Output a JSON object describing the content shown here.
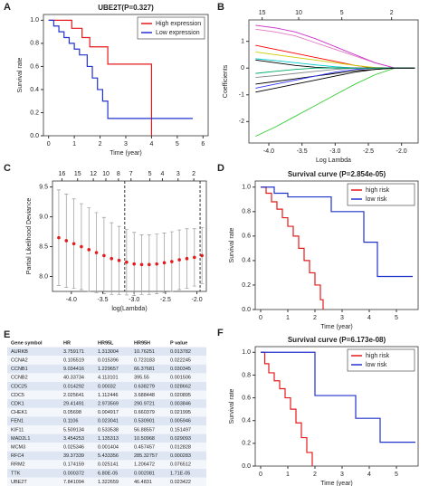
{
  "chart_data": [
    {
      "panel": "A",
      "type": "step",
      "title": "UBE2T(P=0.327)",
      "xlabel": "Time (year)",
      "ylabel": "Survival rate",
      "xlim": [
        -0.2,
        6.2
      ],
      "xticks": [
        0,
        1,
        2,
        3,
        4,
        5,
        6
      ],
      "ylim": [
        0,
        1.05
      ],
      "yticks": [
        {
          "value": 0,
          "label": "0.0"
        },
        0.2,
        0.4,
        0.6,
        0.8,
        {
          "value": 1,
          "label": "1.0"
        }
      ],
      "legend": "upper right",
      "series": [
        {
          "name": "High expression",
          "color": "#e41a1c",
          "x": [
            0,
            0.9,
            1.3,
            1.6,
            2.3,
            3.9,
            4.0
          ],
          "values": [
            1,
            0.93,
            0.85,
            0.77,
            0.62,
            0.62,
            0
          ]
        },
        {
          "name": "Low expression",
          "color": "#2233cc",
          "x": [
            0,
            0.2,
            0.4,
            0.6,
            0.8,
            1.0,
            1.2,
            1.5,
            1.7,
            1.9,
            2.1,
            2.3,
            5.6
          ],
          "values": [
            1,
            0.95,
            0.9,
            0.85,
            0.8,
            0.75,
            0.7,
            0.6,
            0.5,
            0.4,
            0.3,
            0.15,
            0.15
          ]
        }
      ]
    },
    {
      "panel": "B",
      "type": "line",
      "xlabel": "Log Lambda",
      "ylabel": "Coefficients",
      "xlim": [
        -4.3,
        -1.75
      ],
      "xticks": [
        {
          "value": -4,
          "label": "-4.0"
        },
        -3.5,
        {
          "value": -3,
          "label": "-3.0"
        },
        -2.5,
        {
          "value": -2,
          "label": "-2.0"
        }
      ],
      "ylim": [
        -2.8,
        1.8
      ],
      "yticks": [
        -2,
        -1,
        0,
        1
      ],
      "x2ticks": [
        {
          "value": -4.1,
          "label": "15"
        },
        {
          "value": -3.55,
          "label": "10"
        },
        {
          "value": -2.9,
          "label": "5"
        },
        {
          "value": -2.15,
          "label": "2"
        }
      ],
      "x": [
        -4.2,
        -3.9,
        -3.6,
        -3.3,
        -3.0,
        -2.7,
        -2.4,
        -2.1,
        -1.8
      ],
      "series": [
        {
          "color": "#e377c2",
          "values": [
            1.45,
            1.35,
            1.2,
            0.95,
            0.7,
            0.45,
            0.2,
            0,
            0
          ]
        },
        {
          "color": "#cc33cc",
          "values": [
            1.6,
            1.5,
            1.35,
            1.1,
            0.8,
            0.5,
            0.2,
            0,
            0
          ]
        },
        {
          "color": "#33cc33",
          "values": [
            -2.55,
            -2.2,
            -1.8,
            -1.4,
            -1.0,
            -0.6,
            -0.25,
            0,
            0
          ]
        },
        {
          "color": "#ff0000",
          "values": [
            0.85,
            0.7,
            0.55,
            0.4,
            0.25,
            0.1,
            0,
            0,
            0
          ]
        },
        {
          "color": "#cccc00",
          "values": [
            0.6,
            0.5,
            0.4,
            0.3,
            0.2,
            0.1,
            0.02,
            0,
            0
          ]
        },
        {
          "color": "#000000",
          "values": [
            -0.6,
            -0.5,
            -0.4,
            -0.3,
            -0.2,
            -0.1,
            -0.05,
            0,
            0
          ]
        },
        {
          "color": "#3333ff",
          "values": [
            -0.75,
            -0.6,
            -0.45,
            -0.3,
            -0.15,
            -0.05,
            0,
            0,
            0
          ]
        },
        {
          "color": "#00cccc",
          "values": [
            0.35,
            0.28,
            0.2,
            0.12,
            0.05,
            0,
            0,
            0,
            0
          ]
        },
        {
          "color": "#888888",
          "values": [
            -0.35,
            -0.28,
            -0.2,
            -0.12,
            -0.05,
            0,
            0,
            0,
            0
          ]
        },
        {
          "color": "#000000",
          "values": [
            0.3,
            0.2,
            0.1,
            0.03,
            0,
            0,
            0,
            0,
            0
          ]
        },
        {
          "color": "#00aa66",
          "values": [
            -0.2,
            -0.12,
            -0.05,
            0,
            0,
            0,
            0,
            0,
            0
          ]
        },
        {
          "color": "#000000",
          "values": [
            -0.9,
            -0.75,
            -0.6,
            -0.45,
            -0.3,
            -0.15,
            -0.05,
            0,
            0
          ]
        }
      ]
    },
    {
      "panel": "C",
      "type": "errorbar",
      "xlabel": "log(Lambda)",
      "ylabel": "Partial Likelihood Deviance",
      "xlim": [
        -4.3,
        -1.85
      ],
      "xticks": [
        {
          "value": -4,
          "label": "-4.0"
        },
        -3.5,
        {
          "value": -3,
          "label": "-3.0"
        },
        -2.5,
        {
          "value": -2,
          "label": "-2.0"
        }
      ],
      "ylim": [
        7.75,
        9.6
      ],
      "yticks": [
        {
          "value": 8,
          "label": "8.0"
        },
        8.5,
        {
          "value": 9,
          "label": "9.0"
        },
        9.5
      ],
      "x2ticks": [
        {
          "value": -4.15,
          "label": "16"
        },
        {
          "value": -3.9,
          "label": "15"
        },
        {
          "value": -3.65,
          "label": "12"
        },
        {
          "value": -3.45,
          "label": "10"
        },
        {
          "value": -3.25,
          "label": "8"
        },
        {
          "value": -3.05,
          "label": "7"
        },
        {
          "value": -2.75,
          "label": "5"
        },
        {
          "value": -2.55,
          "label": "4"
        },
        {
          "value": -2.3,
          "label": "3"
        },
        {
          "value": -2.05,
          "label": "2"
        }
      ],
      "color": "#e41a1c",
      "x": [
        -4.2,
        -4.08,
        -3.96,
        -3.84,
        -3.72,
        -3.6,
        -3.48,
        -3.36,
        -3.24,
        -3.12,
        -3.0,
        -2.88,
        -2.76,
        -2.64,
        -2.52,
        -2.4,
        -2.28,
        -2.16,
        -2.04,
        -1.92
      ],
      "values": [
        8.65,
        8.6,
        8.55,
        8.5,
        8.45,
        8.4,
        8.35,
        8.3,
        8.27,
        8.24,
        8.21,
        8.2,
        8.2,
        8.21,
        8.23,
        8.25,
        8.28,
        8.3,
        8.32,
        8.35
      ],
      "errors": [
        0.8,
        0.78,
        0.75,
        0.72,
        0.7,
        0.67,
        0.64,
        0.6,
        0.57,
        0.55,
        0.53,
        0.5,
        0.5,
        0.5,
        0.5,
        0.5,
        0.5,
        0.5,
        0.48,
        0.47
      ],
      "vlines": [
        -3.15,
        -1.95
      ]
    },
    {
      "panel": "D",
      "type": "step",
      "title": "Survival curve (P=2.854e-05)",
      "xlabel": "Time (year)",
      "ylabel": "Survival rate",
      "xlim": [
        -0.2,
        5.8
      ],
      "xticks": [
        0,
        1,
        2,
        3,
        4,
        5
      ],
      "ylim": [
        0,
        1.05
      ],
      "yticks": [
        {
          "value": 0,
          "label": "0.0"
        },
        0.2,
        0.4,
        0.6,
        0.8,
        {
          "value": 1,
          "label": "1.0"
        }
      ],
      "legend": "upper right",
      "series": [
        {
          "name": "high risk",
          "color": "#e41a1c",
          "x": [
            0,
            0.2,
            0.4,
            0.6,
            0.8,
            1.0,
            1.2,
            1.4,
            1.6,
            1.8,
            2.0,
            2.2,
            2.3
          ],
          "values": [
            1,
            0.95,
            0.88,
            0.82,
            0.75,
            0.68,
            0.6,
            0.5,
            0.4,
            0.3,
            0.2,
            0.08,
            0
          ]
        },
        {
          "name": "low risk",
          "color": "#2233cc",
          "x": [
            0,
            0.5,
            1.0,
            2.6,
            3.8,
            4.3,
            5.6
          ],
          "values": [
            1,
            0.95,
            0.92,
            0.8,
            0.55,
            0.27,
            0.27
          ]
        }
      ]
    },
    {
      "panel": "F",
      "type": "step",
      "title": "Survival curve (P=6.173e-08)",
      "xlabel": "Time (year)",
      "ylabel": "Survival rate",
      "xlim": [
        -0.2,
        5.8
      ],
      "xticks": [
        0,
        1,
        2,
        3,
        4,
        5
      ],
      "ylim": [
        0,
        1.05
      ],
      "yticks": [
        {
          "value": 0,
          "label": "0.0"
        },
        0.2,
        0.4,
        0.6,
        0.8,
        {
          "value": 1,
          "label": "1.0"
        }
      ],
      "legend": "upper right",
      "series": [
        {
          "name": "high risk",
          "color": "#e41a1c",
          "x": [
            0,
            0.15,
            0.3,
            0.5,
            0.7,
            0.9,
            1.1,
            1.3,
            1.5,
            1.7,
            1.9
          ],
          "values": [
            1,
            0.9,
            0.82,
            0.75,
            0.68,
            0.6,
            0.5,
            0.38,
            0.25,
            0.12,
            0
          ]
        },
        {
          "name": "low risk",
          "color": "#2233cc",
          "x": [
            0,
            2.0,
            3.5,
            4.4,
            5.7
          ],
          "values": [
            1,
            0.62,
            0.42,
            0.21,
            0.21
          ]
        }
      ]
    }
  ],
  "table": {
    "panel": "E",
    "columns": [
      "Gene symbol",
      "HR",
      "HR95L",
      "HR95H",
      "P value"
    ],
    "rows": [
      [
        "AURKB",
        "3.759171",
        "1.313004",
        "10.76251",
        "0.013782"
      ],
      [
        "CCNA2",
        "0.105519",
        "0.015396",
        "0.723183",
        "0.022245"
      ],
      [
        "CCNB1",
        "9.034416",
        "1.229657",
        "66.37681",
        "0.030345"
      ],
      [
        "CCNB2",
        "40.33734",
        "4.113101",
        "395.55",
        "0.001506"
      ],
      [
        "CDC25",
        "0.014292",
        "0.00032",
        "0.638279",
        "0.028662"
      ],
      [
        "CDC5",
        "2.025641",
        "1.112446",
        "3.688448",
        "0.020895"
      ],
      [
        "CDK1",
        "29.41491",
        "2.973569",
        "290.9721",
        "0.003846"
      ],
      [
        "CHEK1",
        "0.05698",
        "0.004917",
        "0.660379",
        "0.021995"
      ],
      [
        "FEN1",
        "0.1106",
        "0.023041",
        "0.530901",
        "0.005946"
      ],
      [
        "KIF11",
        "5.509134",
        "0.533538",
        "56.88557",
        "0.151497"
      ],
      [
        "MAD2L1",
        "3.454253",
        "1.135313",
        "10.50968",
        "0.029093"
      ],
      [
        "MCM3",
        "0.025346",
        "0.001404",
        "0.457457",
        "0.012828"
      ],
      [
        "RFC4",
        "39.37339",
        "5.433356",
        "285.32757",
        "0.000283"
      ],
      [
        "RRM2",
        "0.174159",
        "0.025141",
        "1.206472",
        "0.076512"
      ],
      [
        "TTK",
        "0.000372",
        "6.80E-05",
        "0.002081",
        "1.71E-05"
      ],
      [
        "UBE2T",
        "7.841094",
        "1.322659",
        "46.4831",
        "0.023422"
      ]
    ]
  }
}
